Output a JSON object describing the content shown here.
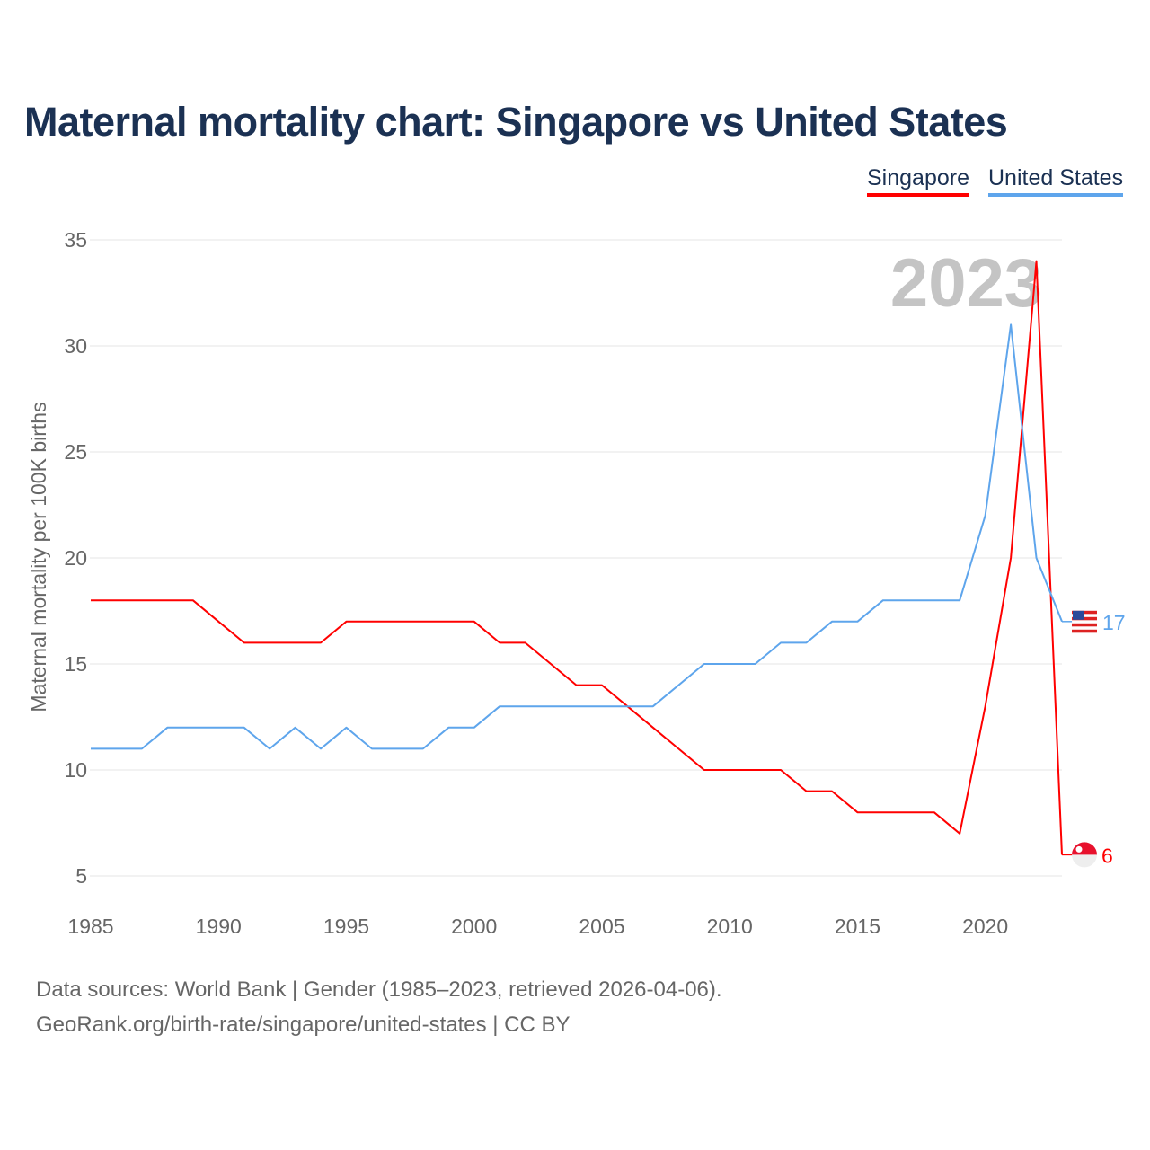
{
  "chart_data": {
    "type": "line",
    "title": "Maternal mortality chart: Singapore vs United States",
    "xlabel": "",
    "ylabel": "Maternal mortality per 100K births",
    "xlim": [
      1985,
      2023
    ],
    "ylim": [
      5,
      35
    ],
    "xticks": [
      1985,
      1990,
      1995,
      2000,
      2005,
      2010,
      2015,
      2020
    ],
    "yticks": [
      5,
      10,
      15,
      20,
      25,
      30,
      35
    ],
    "grid": true,
    "legend_position": "top-right",
    "year_label": "2023",
    "x": [
      1985,
      1986,
      1987,
      1988,
      1989,
      1990,
      1991,
      1992,
      1993,
      1994,
      1995,
      1996,
      1997,
      1998,
      1999,
      2000,
      2001,
      2002,
      2003,
      2004,
      2005,
      2006,
      2007,
      2008,
      2009,
      2010,
      2011,
      2012,
      2013,
      2014,
      2015,
      2016,
      2017,
      2018,
      2019,
      2020,
      2021,
      2022,
      2023
    ],
    "series": [
      {
        "name": "Singapore",
        "color": "#ff0000",
        "end_label": "6",
        "values": [
          18,
          18,
          18,
          18,
          18,
          17,
          16,
          16,
          16,
          16,
          17,
          17,
          17,
          17,
          17,
          17,
          16,
          16,
          15,
          14,
          14,
          13,
          12,
          11,
          10,
          10,
          10,
          10,
          9,
          9,
          8,
          8,
          8,
          8,
          7,
          13,
          20,
          34,
          6
        ]
      },
      {
        "name": "United States",
        "color": "#5ea5ec",
        "end_label": "17",
        "values": [
          11,
          11,
          11,
          12,
          12,
          12,
          12,
          11,
          12,
          11,
          12,
          11,
          11,
          11,
          12,
          12,
          13,
          13,
          13,
          13,
          13,
          13,
          13,
          14,
          15,
          15,
          15,
          16,
          16,
          17,
          17,
          18,
          18,
          18,
          18,
          22,
          31,
          20,
          17
        ]
      }
    ]
  },
  "footer": {
    "line1": "Data sources: World Bank | Gender (1985–2023, retrieved 2026-04-06).",
    "line2": "GeoRank.org/birth-rate/singapore/united-states | CC BY"
  }
}
